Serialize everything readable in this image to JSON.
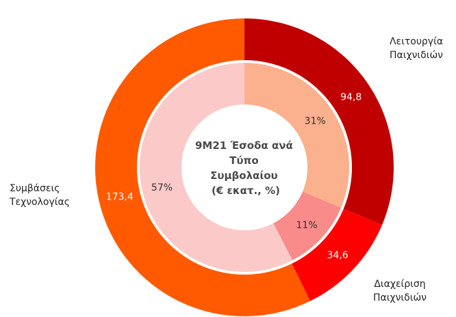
{
  "chart_data": {
    "type": "pie",
    "title_lines": [
      "9M21 Έσοδα ανά",
      "Τύπο",
      "Συμβολαίου",
      "(€ εκατ., %)"
    ],
    "outer_ring": {
      "categories": [
        "Λειτουργία Παιχνιδιών",
        "Διαχείριση Παιχνιδιών",
        "Συμβάσεις Τεχνολογίας"
      ],
      "label_lines": [
        [
          "Λειτουργία",
          "Παιχνιδιών"
        ],
        [
          "Διαχείριση",
          "Παιχνιδιών"
        ],
        [
          "Συμβάσεις",
          "Τεχνολογίας"
        ]
      ],
      "values": [
        94.8,
        34.6,
        173.4
      ],
      "value_labels": [
        "94,8",
        "34,6",
        "173,4"
      ],
      "colors": [
        "#c00000",
        "#ff0000",
        "#ff5a00"
      ]
    },
    "inner_ring": {
      "values": [
        31,
        11,
        57
      ],
      "value_labels": [
        "31%",
        "11%",
        "57%"
      ],
      "colors": [
        "#fbb08e",
        "#f98b8b",
        "#fcc9c9"
      ]
    }
  }
}
